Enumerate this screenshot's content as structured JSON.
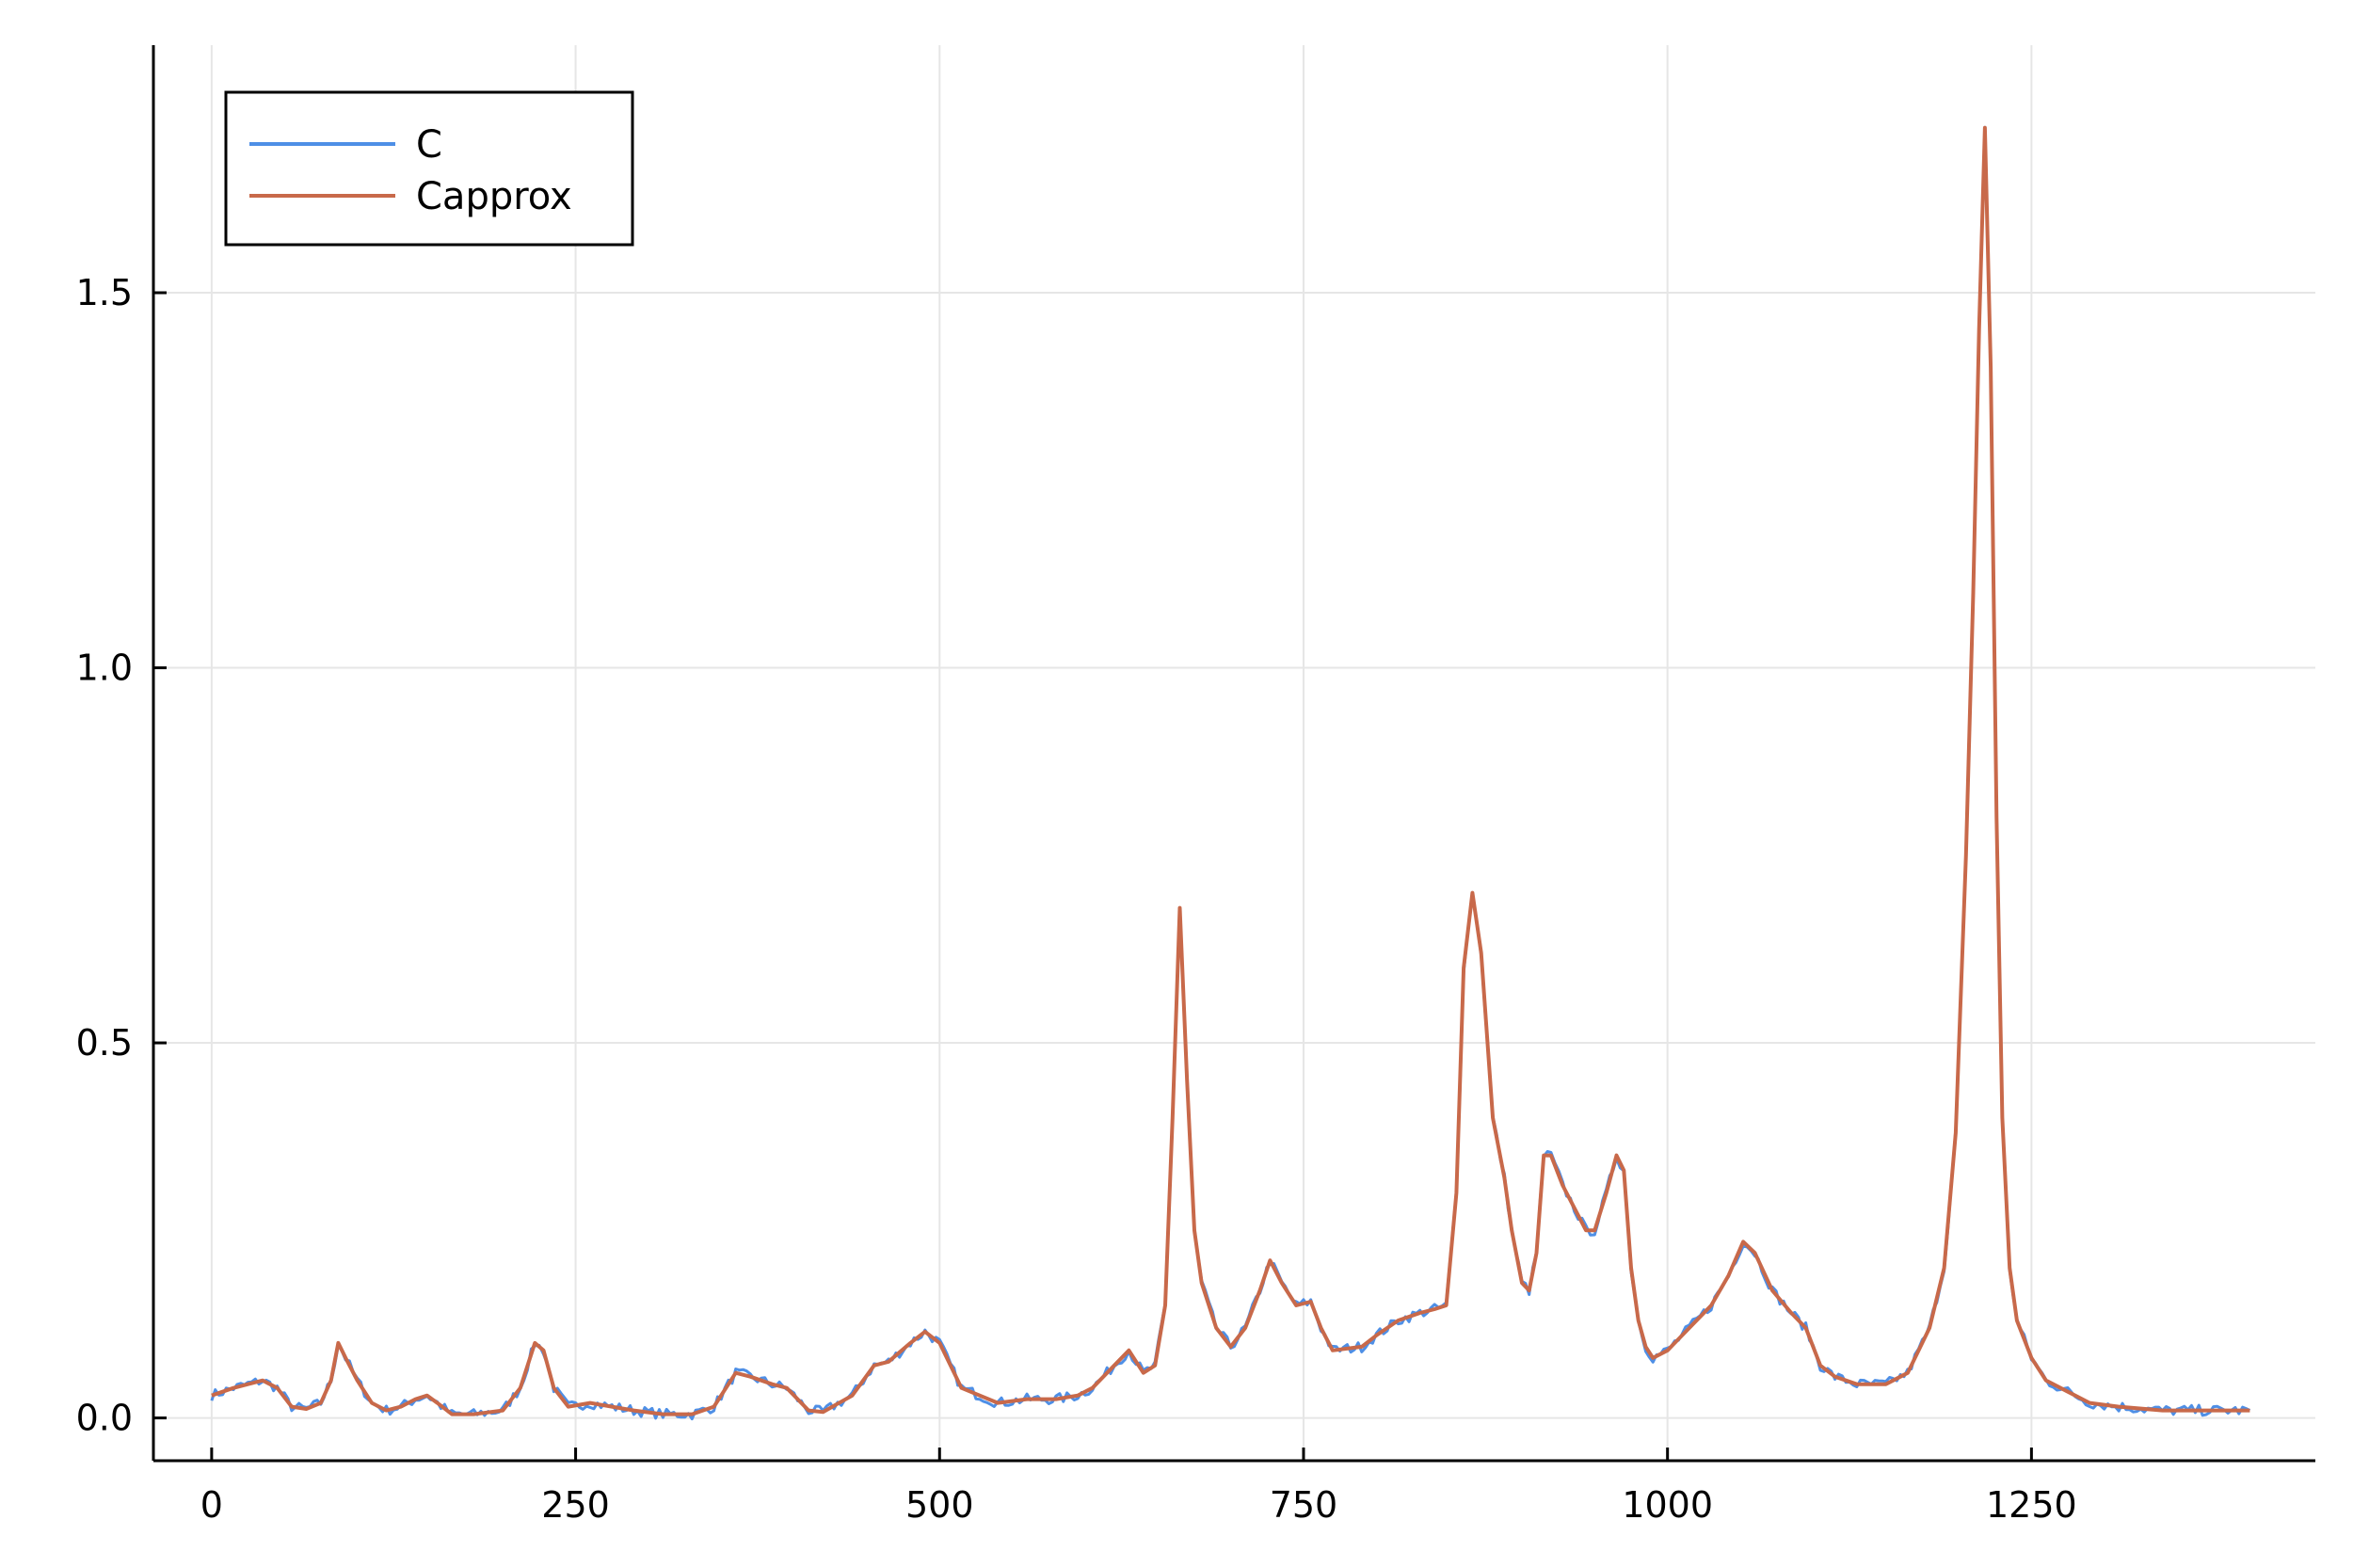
{
  "chart_data": {
    "type": "line",
    "title": "",
    "xlabel": "",
    "ylabel": "",
    "xlim": [
      -40,
      1445
    ],
    "ylim": [
      -0.057,
      1.83
    ],
    "grid": true,
    "legend_position": "top-left",
    "x_ticks": [
      0,
      250,
      500,
      750,
      1000,
      1250
    ],
    "x_tick_labels": [
      "0",
      "250",
      "500",
      "750",
      "1000",
      "1250"
    ],
    "y_ticks": [
      0.0,
      0.5,
      1.0,
      1.5
    ],
    "y_tick_labels": [
      "0.0",
      "0.5",
      "1.0",
      "1.5"
    ],
    "series": [
      {
        "name": "C",
        "color": "#4e8fe6",
        "noisy": true,
        "x": [
          0,
          15,
          25,
          35,
          45,
          55,
          65,
          75,
          82,
          87,
          92,
          100,
          110,
          120,
          130,
          140,
          148,
          155,
          165,
          180,
          200,
          212,
          222,
          228,
          235,
          245,
          260,
          275,
          290,
          310,
          330,
          345,
          360,
          370,
          385,
          395,
          410,
          420,
          440,
          455,
          465,
          480,
          490,
          500,
          515,
          540,
          560,
          580,
          595,
          605,
          615,
          630,
          640,
          648,
          655,
          660,
          665,
          670,
          675,
          680,
          690,
          700,
          710,
          720,
          727,
          735,
          745,
          755,
          762,
          770,
          790,
          800,
          815,
          830,
          840,
          848,
          855,
          860,
          866,
          872,
          880,
          888,
          893,
          900,
          905,
          910,
          915,
          920,
          928,
          936,
          944,
          950,
          958,
          965,
          970,
          975,
          980,
          985,
          990,
          1000,
          1015,
          1030,
          1042,
          1052,
          1060,
          1072,
          1085,
          1095,
          1105,
          1115,
          1130,
          1150,
          1165,
          1180,
          1190,
          1198,
          1205,
          1210,
          1214,
          1218,
          1222,
          1226,
          1230,
          1235,
          1240,
          1250,
          1260,
          1275,
          1290,
          1310,
          1340,
          1370,
          1400
        ],
        "y": [
          0.03,
          0.04,
          0.045,
          0.05,
          0.04,
          0.015,
          0.012,
          0.02,
          0.05,
          0.1,
          0.08,
          0.05,
          0.02,
          0.01,
          0.015,
          0.025,
          0.03,
          0.02,
          0.005,
          0.005,
          0.01,
          0.04,
          0.1,
          0.09,
          0.04,
          0.015,
          0.02,
          0.015,
          0.01,
          0.005,
          0.005,
          0.015,
          0.06,
          0.055,
          0.045,
          0.04,
          0.01,
          0.008,
          0.03,
          0.07,
          0.075,
          0.1,
          0.115,
          0.1,
          0.04,
          0.02,
          0.025,
          0.025,
          0.03,
          0.04,
          0.06,
          0.09,
          0.06,
          0.07,
          0.15,
          0.4,
          0.68,
          0.45,
          0.25,
          0.18,
          0.12,
          0.095,
          0.12,
          0.17,
          0.21,
          0.18,
          0.15,
          0.155,
          0.12,
          0.09,
          0.095,
          0.11,
          0.13,
          0.14,
          0.145,
          0.15,
          0.3,
          0.6,
          0.7,
          0.62,
          0.4,
          0.32,
          0.25,
          0.18,
          0.17,
          0.22,
          0.35,
          0.35,
          0.31,
          0.28,
          0.25,
          0.25,
          0.3,
          0.35,
          0.33,
          0.2,
          0.13,
          0.095,
          0.08,
          0.09,
          0.12,
          0.15,
          0.19,
          0.235,
          0.22,
          0.17,
          0.14,
          0.12,
          0.07,
          0.055,
          0.045,
          0.045,
          0.06,
          0.12,
          0.2,
          0.38,
          0.75,
          1.1,
          1.45,
          1.72,
          1.4,
          0.8,
          0.4,
          0.2,
          0.13,
          0.08,
          0.05,
          0.035,
          0.02,
          0.015,
          0.01,
          0.01,
          0.01
        ]
      },
      {
        "name": "Capprox",
        "color": "#c8694a",
        "noisy": false,
        "x": [
          0,
          15,
          25,
          35,
          45,
          55,
          65,
          75,
          82,
          87,
          92,
          100,
          110,
          120,
          130,
          140,
          148,
          155,
          165,
          180,
          200,
          212,
          222,
          228,
          235,
          245,
          260,
          275,
          290,
          310,
          330,
          345,
          360,
          370,
          385,
          395,
          410,
          420,
          440,
          455,
          465,
          480,
          490,
          500,
          515,
          540,
          560,
          580,
          595,
          605,
          615,
          630,
          640,
          648,
          655,
          660,
          665,
          670,
          675,
          680,
          690,
          700,
          710,
          720,
          727,
          735,
          745,
          755,
          762,
          770,
          790,
          800,
          815,
          830,
          840,
          848,
          855,
          860,
          866,
          872,
          880,
          888,
          893,
          900,
          905,
          910,
          915,
          920,
          928,
          936,
          944,
          950,
          958,
          965,
          970,
          975,
          980,
          985,
          990,
          1000,
          1015,
          1030,
          1042,
          1052,
          1060,
          1072,
          1085,
          1095,
          1105,
          1115,
          1130,
          1150,
          1165,
          1180,
          1190,
          1198,
          1205,
          1210,
          1214,
          1218,
          1222,
          1226,
          1230,
          1235,
          1240,
          1250,
          1260,
          1275,
          1290,
          1310,
          1340,
          1370,
          1400
        ],
        "y": [
          0.03,
          0.04,
          0.045,
          0.05,
          0.04,
          0.015,
          0.012,
          0.02,
          0.05,
          0.1,
          0.08,
          0.05,
          0.02,
          0.01,
          0.015,
          0.025,
          0.03,
          0.02,
          0.005,
          0.005,
          0.01,
          0.04,
          0.1,
          0.09,
          0.04,
          0.015,
          0.02,
          0.015,
          0.01,
          0.005,
          0.005,
          0.015,
          0.06,
          0.055,
          0.045,
          0.04,
          0.01,
          0.008,
          0.03,
          0.07,
          0.075,
          0.1,
          0.115,
          0.1,
          0.04,
          0.02,
          0.025,
          0.025,
          0.03,
          0.04,
          0.06,
          0.09,
          0.06,
          0.07,
          0.15,
          0.4,
          0.68,
          0.45,
          0.25,
          0.18,
          0.12,
          0.095,
          0.12,
          0.17,
          0.21,
          0.18,
          0.15,
          0.155,
          0.12,
          0.09,
          0.095,
          0.11,
          0.13,
          0.14,
          0.145,
          0.15,
          0.3,
          0.6,
          0.7,
          0.62,
          0.4,
          0.32,
          0.25,
          0.18,
          0.17,
          0.22,
          0.35,
          0.35,
          0.31,
          0.28,
          0.25,
          0.25,
          0.3,
          0.35,
          0.33,
          0.2,
          0.13,
          0.095,
          0.08,
          0.09,
          0.12,
          0.15,
          0.19,
          0.235,
          0.22,
          0.17,
          0.14,
          0.12,
          0.07,
          0.055,
          0.045,
          0.045,
          0.06,
          0.12,
          0.2,
          0.38,
          0.75,
          1.1,
          1.45,
          1.72,
          1.4,
          0.8,
          0.4,
          0.2,
          0.13,
          0.08,
          0.05,
          0.035,
          0.02,
          0.015,
          0.01,
          0.01,
          0.01
        ]
      }
    ]
  }
}
